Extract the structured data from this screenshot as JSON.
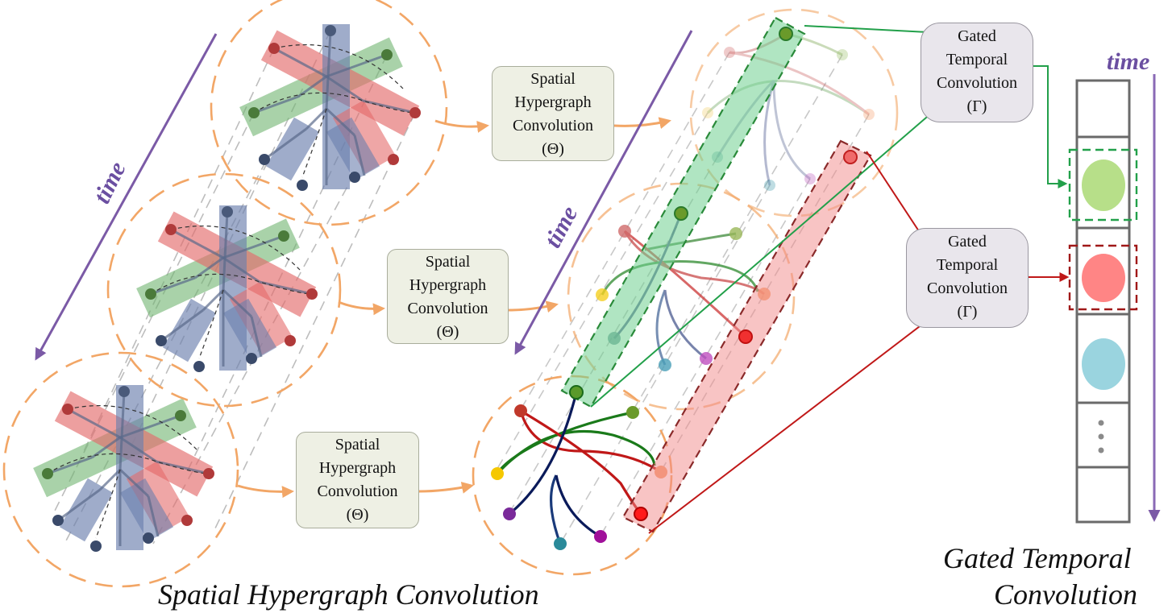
{
  "spatial_boxes": [
    {
      "lines": [
        "Spatial",
        "Hypergraph",
        "Convolution",
        "(Θ)"
      ]
    },
    {
      "lines": [
        "Spatial",
        "Hypergraph",
        "Convolution",
        "(Θ)"
      ]
    },
    {
      "lines": [
        "Spatial",
        "Hypergraph",
        "Convolution",
        "(Θ)"
      ]
    }
  ],
  "gated_boxes": [
    {
      "lines": [
        "Gated",
        "Temporal",
        "Convolution",
        "(Γ)"
      ]
    },
    {
      "lines": [
        "Gated",
        "Temporal",
        "Convolution",
        "(Γ)"
      ]
    }
  ],
  "time_labels": [
    "time",
    "time",
    "time"
  ],
  "captions": {
    "spatial": "Spatial Hypergraph Convolution",
    "gated_line1": "Gated Temporal",
    "gated_line2": "Convolution"
  },
  "colors": {
    "orange": "#f2a666",
    "purple": "#7b5aa6",
    "green_hyperedge": "#6fb46f",
    "red_hyperedge": "#e46b6b",
    "blue_hyperedge": "#6b7fae",
    "green_output": "#b7df89",
    "red_output": "#ff8585",
    "cyan_output": "#9ad4df"
  }
}
